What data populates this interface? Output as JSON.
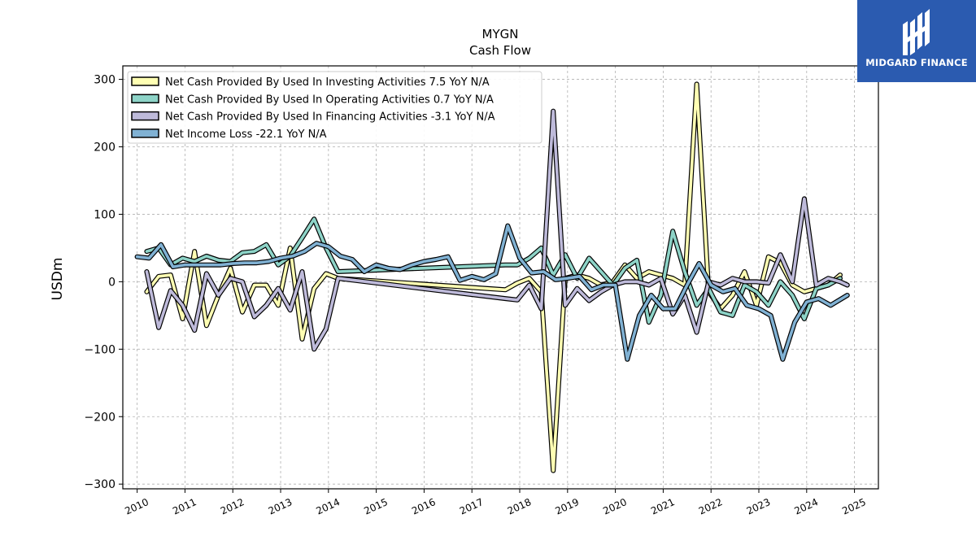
{
  "brand": {
    "name": "MIDGARD FINANCE",
    "bg_color": "#2b5bb0",
    "icon": "midgard-logo-icon"
  },
  "chart_data": {
    "type": "line",
    "title": "MYGN",
    "subtitle": "Cash Flow",
    "xlabel": "",
    "ylabel": "USDm",
    "xlim": [
      2009.7,
      2025.5
    ],
    "ylim": [
      -307,
      320
    ],
    "yticks": [
      -300,
      -200,
      -100,
      0,
      100,
      200,
      300
    ],
    "ytick_labels": [
      "−300",
      "−200",
      "−100",
      "0",
      "100",
      "200",
      "300"
    ],
    "xticks": [
      2010,
      2011,
      2012,
      2013,
      2014,
      2015,
      2016,
      2017,
      2018,
      2019,
      2020,
      2021,
      2022,
      2023,
      2024,
      2025
    ],
    "xtick_labels": [
      "2010",
      "2011",
      "2012",
      "2013",
      "2014",
      "2015",
      "2016",
      "2017",
      "2018",
      "2019",
      "2020",
      "2021",
      "2022",
      "2023",
      "2024",
      "2025"
    ],
    "grid": true,
    "legend_position": "top-left",
    "series": [
      {
        "name": "Net Cash Provided By Used In Investing Activities  7.5 YoY N/A",
        "color": "#ffffb3",
        "points": [
          [
            2010.2,
            -15
          ],
          [
            2010.45,
            8
          ],
          [
            2010.7,
            10
          ],
          [
            2010.95,
            -55
          ],
          [
            2011.2,
            45
          ],
          [
            2011.45,
            -65
          ],
          [
            2011.7,
            -20
          ],
          [
            2011.95,
            20
          ],
          [
            2012.2,
            -45
          ],
          [
            2012.45,
            -5
          ],
          [
            2012.7,
            -5
          ],
          [
            2012.95,
            -35
          ],
          [
            2013.2,
            50
          ],
          [
            2013.45,
            -85
          ],
          [
            2013.7,
            -10
          ],
          [
            2013.95,
            12
          ],
          [
            2014.2,
            5
          ],
          [
            2017.7,
            -12
          ],
          [
            2017.95,
            -2
          ],
          [
            2018.2,
            5
          ],
          [
            2018.45,
            -15
          ],
          [
            2018.7,
            -280
          ],
          [
            2018.95,
            5
          ],
          [
            2019.2,
            10
          ],
          [
            2019.45,
            5
          ],
          [
            2019.7,
            -5
          ],
          [
            2019.95,
            0
          ],
          [
            2020.2,
            25
          ],
          [
            2020.45,
            5
          ],
          [
            2020.7,
            15
          ],
          [
            2020.95,
            10
          ],
          [
            2021.2,
            5
          ],
          [
            2021.45,
            -5
          ],
          [
            2021.7,
            293
          ],
          [
            2021.95,
            -15
          ],
          [
            2022.2,
            -40
          ],
          [
            2022.45,
            -20
          ],
          [
            2022.7,
            15
          ],
          [
            2022.95,
            -35
          ],
          [
            2023.2,
            37
          ],
          [
            2023.45,
            28
          ],
          [
            2023.7,
            -5
          ],
          [
            2023.95,
            -15
          ],
          [
            2024.2,
            -10
          ],
          [
            2024.45,
            -5
          ],
          [
            2024.7,
            10
          ]
        ]
      },
      {
        "name": "Net Cash Provided By Used In Operating Activities  0.7 YoY N/A",
        "color": "#8dd3c7",
        "points": [
          [
            2010.2,
            45
          ],
          [
            2010.45,
            50
          ],
          [
            2010.7,
            25
          ],
          [
            2010.95,
            35
          ],
          [
            2011.2,
            30
          ],
          [
            2011.45,
            38
          ],
          [
            2011.7,
            32
          ],
          [
            2011.95,
            30
          ],
          [
            2012.2,
            43
          ],
          [
            2012.45,
            45
          ],
          [
            2012.7,
            55
          ],
          [
            2012.95,
            25
          ],
          [
            2013.2,
            38
          ],
          [
            2013.45,
            65
          ],
          [
            2013.7,
            93
          ],
          [
            2013.95,
            50
          ],
          [
            2014.2,
            15
          ],
          [
            2017.7,
            25
          ],
          [
            2017.95,
            25
          ],
          [
            2018.2,
            35
          ],
          [
            2018.45,
            50
          ],
          [
            2018.7,
            10
          ],
          [
            2018.95,
            40
          ],
          [
            2019.2,
            5
          ],
          [
            2019.45,
            35
          ],
          [
            2019.7,
            15
          ],
          [
            2019.95,
            -5
          ],
          [
            2020.2,
            20
          ],
          [
            2020.45,
            32
          ],
          [
            2020.7,
            -60
          ],
          [
            2020.95,
            -20
          ],
          [
            2021.2,
            75
          ],
          [
            2021.45,
            15
          ],
          [
            2021.7,
            -35
          ],
          [
            2021.95,
            -10
          ],
          [
            2022.2,
            -45
          ],
          [
            2022.45,
            -50
          ],
          [
            2022.7,
            -5
          ],
          [
            2022.95,
            -15
          ],
          [
            2023.2,
            -35
          ],
          [
            2023.45,
            0
          ],
          [
            2023.7,
            -20
          ],
          [
            2023.95,
            -55
          ],
          [
            2024.2,
            -10
          ],
          [
            2024.45,
            -5
          ],
          [
            2024.7,
            5
          ]
        ]
      },
      {
        "name": "Net Cash Provided By Used In Financing Activities  -3.1 YoY N/A",
        "color": "#bebada",
        "points": [
          [
            2010.2,
            15
          ],
          [
            2010.45,
            -68
          ],
          [
            2010.7,
            -13
          ],
          [
            2010.95,
            -35
          ],
          [
            2011.2,
            -72
          ],
          [
            2011.45,
            12
          ],
          [
            2011.7,
            -20
          ],
          [
            2011.95,
            5
          ],
          [
            2012.2,
            0
          ],
          [
            2012.45,
            -52
          ],
          [
            2012.7,
            -35
          ],
          [
            2012.95,
            -10
          ],
          [
            2013.2,
            -42
          ],
          [
            2013.45,
            15
          ],
          [
            2013.7,
            -100
          ],
          [
            2013.95,
            -70
          ],
          [
            2014.2,
            5
          ],
          [
            2017.7,
            -25
          ],
          [
            2017.95,
            -27
          ],
          [
            2018.2,
            -5
          ],
          [
            2018.45,
            -40
          ],
          [
            2018.7,
            253
          ],
          [
            2018.95,
            -35
          ],
          [
            2019.2,
            -10
          ],
          [
            2019.45,
            -28
          ],
          [
            2019.7,
            -15
          ],
          [
            2019.95,
            -5
          ],
          [
            2020.2,
            0
          ],
          [
            2020.45,
            0
          ],
          [
            2020.7,
            -5
          ],
          [
            2020.95,
            5
          ],
          [
            2021.2,
            -48
          ],
          [
            2021.45,
            -20
          ],
          [
            2021.7,
            -75
          ],
          [
            2021.95,
            0
          ],
          [
            2022.2,
            -5
          ],
          [
            2022.45,
            5
          ],
          [
            2022.7,
            0
          ],
          [
            2022.95,
            0
          ],
          [
            2023.2,
            -2
          ],
          [
            2023.45,
            40
          ],
          [
            2023.7,
            0
          ],
          [
            2023.95,
            123
          ],
          [
            2024.2,
            -5
          ],
          [
            2024.45,
            5
          ],
          [
            2024.7,
            0
          ],
          [
            2024.85,
            -5
          ]
        ]
      },
      {
        "name": "Net Income Loss  -22.1 YoY N/A",
        "color": "#80b1d3",
        "points": [
          [
            2010.0,
            37
          ],
          [
            2010.25,
            35
          ],
          [
            2010.5,
            55
          ],
          [
            2010.75,
            22
          ],
          [
            2011.0,
            25
          ],
          [
            2011.25,
            25
          ],
          [
            2011.5,
            25
          ],
          [
            2011.75,
            25
          ],
          [
            2012.0,
            27
          ],
          [
            2012.25,
            28
          ],
          [
            2012.5,
            28
          ],
          [
            2012.75,
            30
          ],
          [
            2013.0,
            35
          ],
          [
            2013.25,
            38
          ],
          [
            2013.5,
            45
          ],
          [
            2013.75,
            57
          ],
          [
            2014.0,
            52
          ],
          [
            2014.25,
            38
          ],
          [
            2014.5,
            33
          ],
          [
            2014.75,
            15
          ],
          [
            2015.0,
            25
          ],
          [
            2015.25,
            20
          ],
          [
            2015.5,
            18
          ],
          [
            2015.75,
            25
          ],
          [
            2016.0,
            30
          ],
          [
            2016.25,
            33
          ],
          [
            2016.5,
            37
          ],
          [
            2016.75,
            2
          ],
          [
            2017.0,
            8
          ],
          [
            2017.25,
            3
          ],
          [
            2017.5,
            12
          ],
          [
            2017.75,
            83
          ],
          [
            2018.0,
            35
          ],
          [
            2018.25,
            13
          ],
          [
            2018.5,
            15
          ],
          [
            2018.75,
            3
          ],
          [
            2019.0,
            5
          ],
          [
            2019.25,
            8
          ],
          [
            2019.5,
            -12
          ],
          [
            2019.75,
            -5
          ],
          [
            2020.0,
            -5
          ],
          [
            2020.25,
            -115
          ],
          [
            2020.5,
            -50
          ],
          [
            2020.75,
            -20
          ],
          [
            2021.0,
            -40
          ],
          [
            2021.25,
            -40
          ],
          [
            2021.5,
            -5
          ],
          [
            2021.75,
            27
          ],
          [
            2022.0,
            -5
          ],
          [
            2022.25,
            -15
          ],
          [
            2022.5,
            -10
          ],
          [
            2022.75,
            -35
          ],
          [
            2023.0,
            -40
          ],
          [
            2023.25,
            -50
          ],
          [
            2023.5,
            -115
          ],
          [
            2023.75,
            -60
          ],
          [
            2024.0,
            -30
          ],
          [
            2024.25,
            -25
          ],
          [
            2024.5,
            -35
          ],
          [
            2024.85,
            -20
          ]
        ]
      }
    ]
  }
}
